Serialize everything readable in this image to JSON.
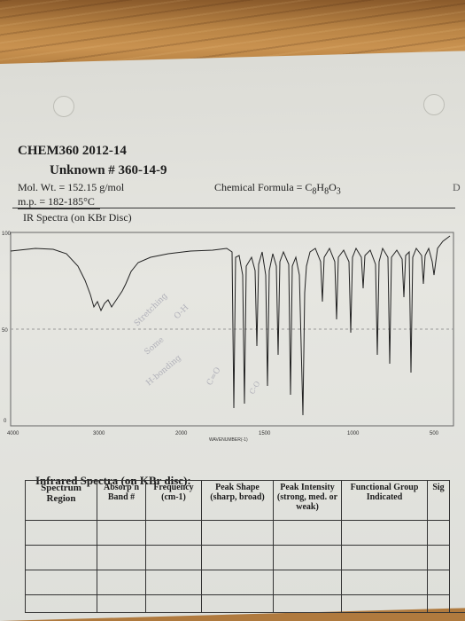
{
  "header": {
    "course": "CHEM360 2012-14",
    "unknown": "Unknown # 360-14-9",
    "mol_wt": "Mol. Wt. = 152.15 g/mol",
    "mp": "m.p. = 182-185°C",
    "formula_prefix": "Chemical Formula = C",
    "formula_sub1": "8",
    "formula_mid": "H",
    "formula_sub2": "8",
    "formula_o": "O",
    "formula_sub3": "3",
    "edge_letter": "D"
  },
  "spectrum": {
    "title": "IR Spectra (on KBr Disc)",
    "y_ticks": [
      "100",
      "50",
      "0"
    ],
    "x_ticks": [
      "4000",
      "3000",
      "2000",
      "1500",
      "1000",
      "500"
    ],
    "x_label": "WAVENUMBER(-1)",
    "handwriting": [
      "O-H",
      "Stretching",
      "Some",
      "H-bonding",
      "C=O",
      "C-O"
    ]
  },
  "table": {
    "title": "Infrared Spectra (on KBr disc):",
    "headers": [
      "Spectrum Region",
      "Absorp'n Band #",
      "Frequency (cm-1)",
      "Peak Shape (sharp, broad)",
      "Peak Intensity (strong, med. or weak)",
      "Functional Group Indicated",
      "Sig"
    ],
    "rows": 4
  }
}
